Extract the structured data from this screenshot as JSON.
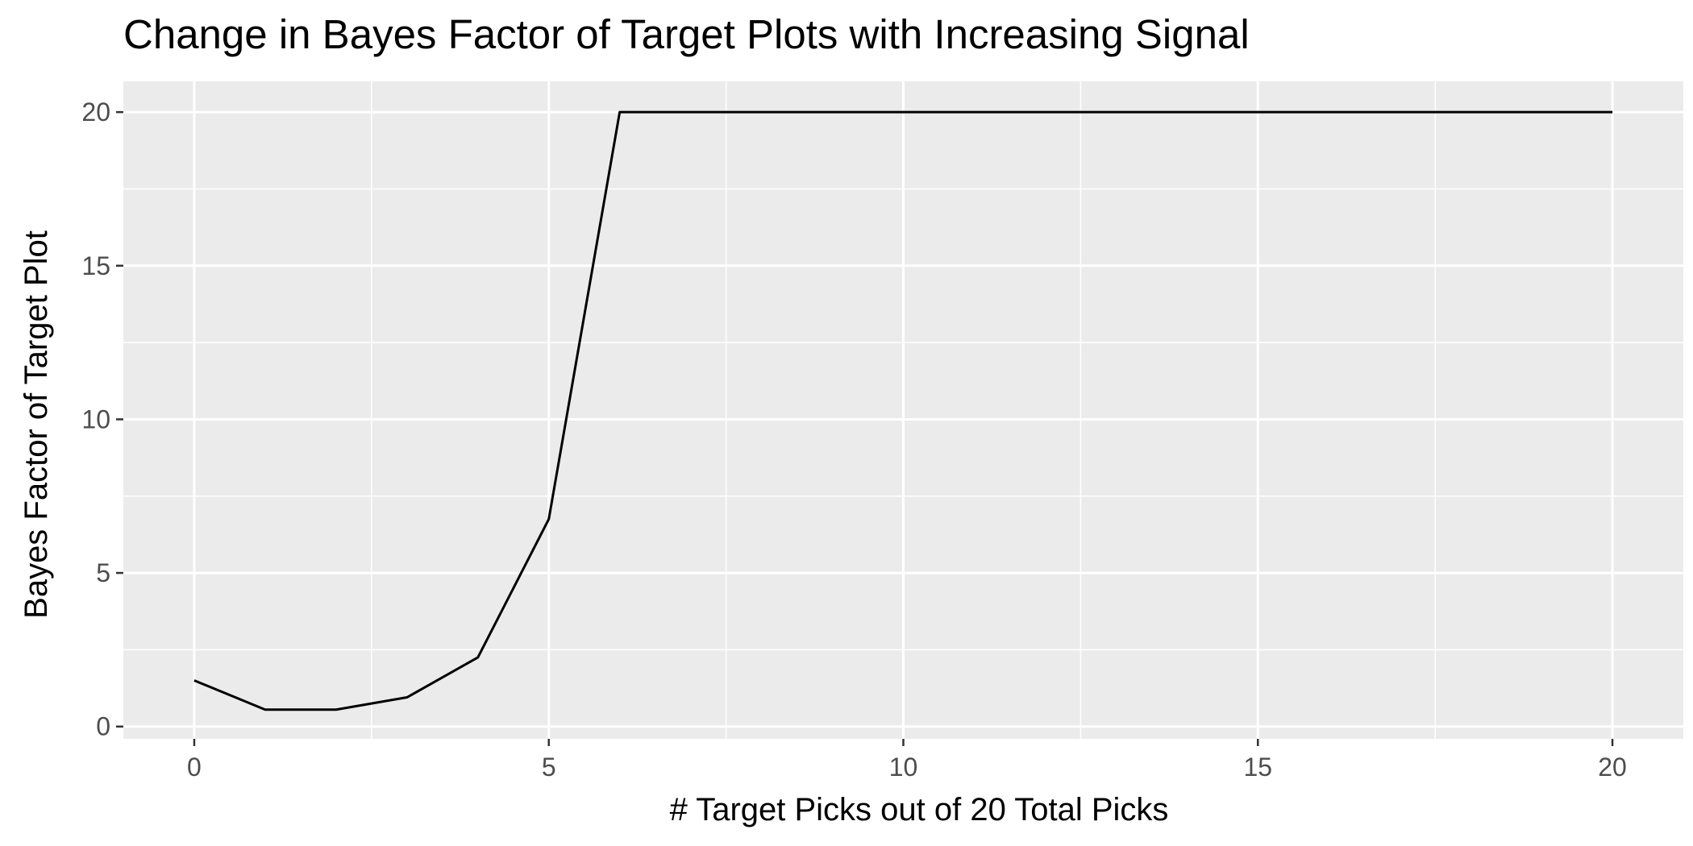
{
  "chart_data": {
    "type": "line",
    "title": "Change in Bayes Factor of Target Plots with Increasing Signal",
    "xlabel": "# Target Picks out of 20 Total Picks",
    "ylabel": "Bayes Factor of Target Plot",
    "xlim": [
      -1,
      21
    ],
    "ylim": [
      -0.4,
      21
    ],
    "x_ticks": [
      0,
      5,
      10,
      15,
      20
    ],
    "x_tick_labels": [
      "0",
      "5",
      "10",
      "15",
      "20"
    ],
    "y_ticks": [
      0,
      5,
      10,
      15,
      20
    ],
    "y_tick_labels": [
      "0",
      "5",
      "10",
      "15",
      "20"
    ],
    "x_minor": [
      2.5,
      7.5,
      12.5,
      17.5
    ],
    "y_minor": [
      2.5,
      7.5,
      12.5,
      17.5
    ],
    "grid": true,
    "background": "#ebebeb",
    "series": [
      {
        "color": "#000000",
        "x": [
          0,
          1,
          2,
          3,
          4,
          5,
          6,
          7,
          8,
          9,
          10,
          11,
          12,
          13,
          14,
          15,
          16,
          17,
          18,
          19,
          20
        ],
        "y": [
          1.5,
          0.55,
          0.55,
          0.95,
          2.25,
          6.75,
          20,
          20,
          20,
          20,
          20,
          20,
          20,
          20,
          20,
          20,
          20,
          20,
          20,
          20,
          20
        ]
      }
    ]
  }
}
